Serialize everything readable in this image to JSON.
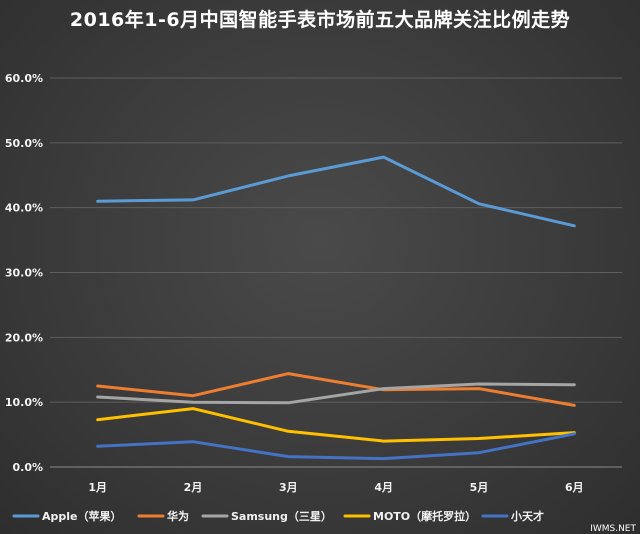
{
  "chart_data": {
    "type": "line",
    "title": "2016年1-6月中国智能手表市场前五大品牌关注比例走势",
    "xlabel": "",
    "ylabel": "",
    "categories": [
      "1月",
      "2月",
      "3月",
      "4月",
      "5月",
      "6月"
    ],
    "ylim": [
      0,
      60
    ],
    "yticks": [
      "0.0%",
      "10.0%",
      "20.0%",
      "30.0%",
      "40.0%",
      "50.0%",
      "60.0%"
    ],
    "grid": true,
    "legend_position": "bottom",
    "series": [
      {
        "name": "Apple（苹果）",
        "color": "#5b9bd5",
        "values": [
          41.0,
          41.2,
          44.9,
          47.8,
          40.6,
          37.2
        ]
      },
      {
        "name": "华为",
        "color": "#ed7d31",
        "values": [
          12.5,
          11.0,
          14.4,
          11.9,
          12.1,
          9.5
        ]
      },
      {
        "name": "Samsung（三星）",
        "color": "#a5a5a5",
        "values": [
          10.8,
          10.0,
          9.9,
          12.1,
          12.8,
          12.7
        ]
      },
      {
        "name": "MOTO（摩托罗拉）",
        "color": "#ffc000",
        "values": [
          7.3,
          9.0,
          5.5,
          4.0,
          4.4,
          5.3
        ]
      },
      {
        "name": "小天才",
        "color": "#4472c4",
        "values": [
          3.2,
          3.9,
          1.6,
          1.3,
          2.2,
          5.1
        ]
      }
    ]
  },
  "watermark": "IWMS.NET"
}
